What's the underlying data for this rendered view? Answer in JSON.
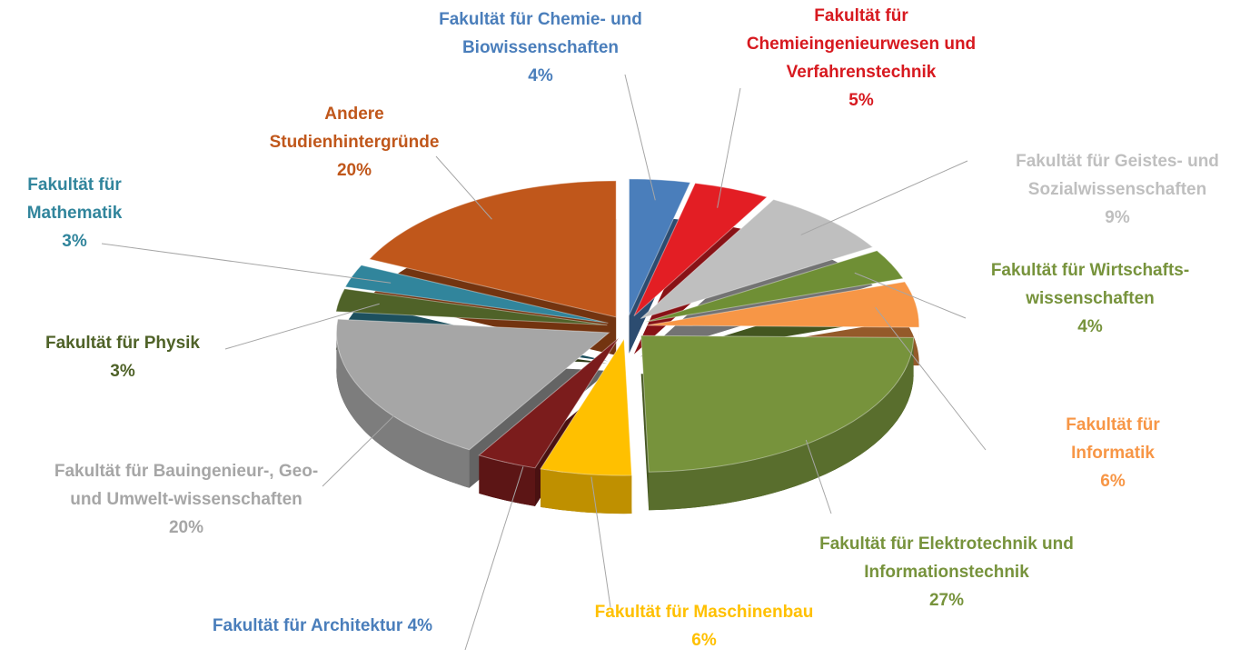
{
  "chart_data": {
    "type": "pie3d",
    "categories": [
      "Fakultät für Chemie- und Biowissenschaften",
      "Fakultät für Chemieingenieurwesen und Verfahrenstechnik",
      "Fakultät für Geistes- und Sozialwissenschaften",
      "Fakultät für Wirtschafts-wissenschaften",
      "Fakultät für Informatik",
      "Fakultät für Elektrotechnik und Informationstechnik",
      "Fakultät für Maschinenbau",
      "Fakultät für Architektur",
      "Fakultät für Bauingenieur-, Geo- und Umwelt-wissenschaften",
      "Fakultät für Physik",
      "Fakultät für Mathematik",
      "Andere Studienhintergründe"
    ],
    "values": [
      4,
      5,
      9,
      4,
      6,
      27,
      6,
      4,
      20,
      3,
      3,
      20
    ],
    "value_labels": [
      "4%",
      "5%",
      "9%",
      "4%",
      "6%",
      "27%",
      "6%",
      "4%",
      "20%",
      "3%",
      "3%",
      "20%"
    ],
    "colors": [
      "#4a7ebb",
      "#e31e24",
      "#bfbfbf",
      "#6f8f35",
      "#f79646",
      "#77933c",
      "#ffc000",
      "#7b1c1c",
      "#a6a6a6",
      "#4f6228",
      "#31859c",
      "#c0571b"
    ],
    "label_colors": [
      "#4a7ebb",
      "#d7191f",
      "#bfbfbf",
      "#77933c",
      "#f79646",
      "#77933c",
      "#ffc000",
      "#4a7ebb",
      "#a6a6a6",
      "#4f6228",
      "#31859c",
      "#c0571b"
    ]
  }
}
